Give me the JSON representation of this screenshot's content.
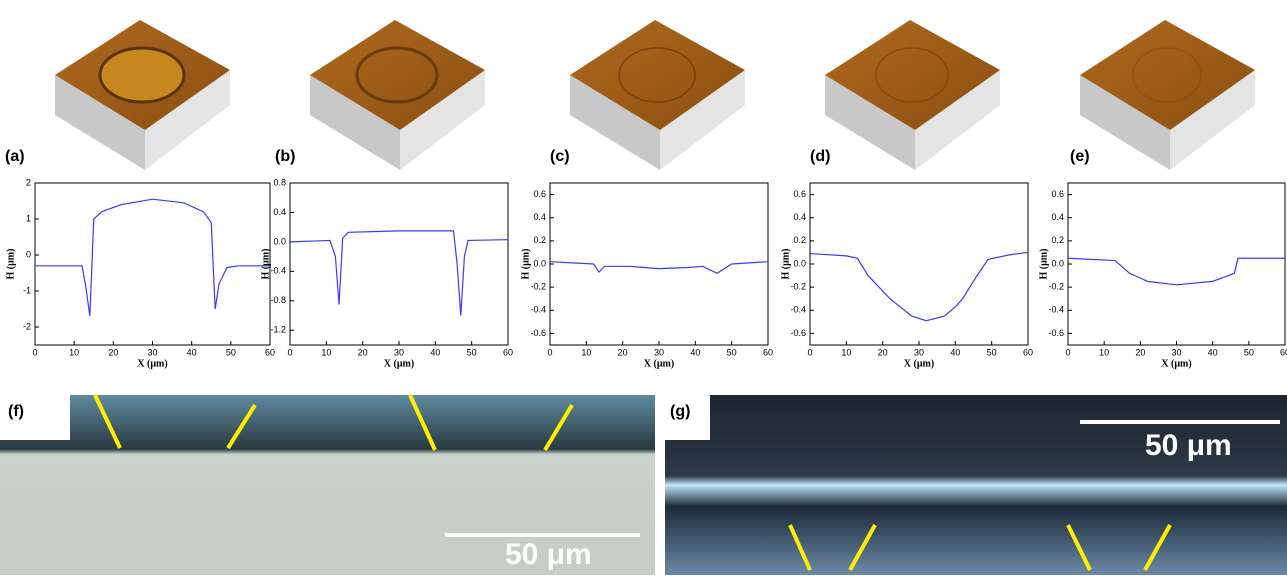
{
  "chart_data": [
    {
      "type": "line",
      "xlabel": "X (μm)",
      "ylabel": "H (μm)",
      "color": "#3a3aff",
      "x": [
        0,
        12,
        13,
        14,
        15,
        17,
        22,
        30,
        38,
        43,
        45,
        46,
        47,
        49,
        52,
        60
      ],
      "values": [
        -0.3,
        -0.3,
        -0.9,
        -1.7,
        1.0,
        1.2,
        1.4,
        1.55,
        1.45,
        1.2,
        0.9,
        -1.5,
        -0.8,
        -0.35,
        -0.3,
        -0.3
      ],
      "xlim": [
        0,
        60
      ],
      "xticks": [
        0,
        10,
        20,
        30,
        40,
        50,
        60
      ],
      "ylim": [
        -2.5,
        2.0
      ],
      "yticks": [
        -2,
        -1,
        0,
        1,
        2
      ]
    },
    {
      "type": "line",
      "xlabel": "X (μm)",
      "ylabel": "H (μm)",
      "color": "#3a3aff",
      "x": [
        0,
        11,
        12.5,
        13.5,
        14.5,
        16,
        30,
        45,
        46,
        47,
        48,
        49,
        60
      ],
      "values": [
        0.0,
        0.02,
        -0.2,
        -0.85,
        0.05,
        0.13,
        0.15,
        0.15,
        -0.3,
        -1.0,
        -0.2,
        0.02,
        0.03
      ],
      "xlim": [
        0,
        60
      ],
      "xticks": [
        0,
        10,
        20,
        30,
        40,
        50,
        60
      ],
      "ylim": [
        -1.4,
        0.8
      ],
      "yticks": [
        -1.2,
        -0.8,
        -0.4,
        {
          "value": 0,
          "label": "0.0"
        },
        0.4,
        0.8
      ]
    },
    {
      "type": "line",
      "xlabel": "X (μm)",
      "ylabel": "H (μm)",
      "color": "#3a3aff",
      "x": [
        0,
        12,
        13.5,
        15,
        22,
        30,
        38,
        42,
        46,
        50,
        60
      ],
      "values": [
        0.02,
        0.0,
        -0.07,
        -0.02,
        -0.02,
        -0.04,
        -0.03,
        -0.02,
        -0.08,
        0.0,
        0.02
      ],
      "xlim": [
        0,
        60
      ],
      "xticks": [
        0,
        10,
        20,
        30,
        40,
        50,
        60
      ],
      "ylim": [
        -0.7,
        0.7
      ],
      "yticks": [
        -0.6,
        -0.4,
        -0.2,
        {
          "value": 0,
          "label": "0.0"
        },
        0.2,
        0.4,
        0.6
      ]
    },
    {
      "type": "line",
      "xlabel": "X (μm)",
      "ylabel": "H (μm)",
      "color": "#3a3aff",
      "x": [
        0,
        10,
        13,
        16,
        22,
        28,
        32,
        37,
        40,
        42,
        46,
        49,
        55,
        60
      ],
      "values": [
        0.09,
        0.07,
        0.05,
        -0.1,
        -0.3,
        -0.45,
        -0.49,
        -0.45,
        -0.37,
        -0.3,
        -0.1,
        0.04,
        0.08,
        0.1
      ],
      "xlim": [
        0,
        60
      ],
      "xticks": [
        0,
        10,
        20,
        30,
        40,
        50,
        60
      ],
      "ylim": [
        -0.7,
        0.7
      ],
      "yticks": [
        -0.6,
        -0.4,
        -0.2,
        {
          "value": 0,
          "label": "0.0"
        },
        0.2,
        0.4,
        0.6
      ]
    },
    {
      "type": "line",
      "xlabel": "X (μm)",
      "ylabel": "H (μm)",
      "color": "#3a3aff",
      "x": [
        0,
        13,
        17,
        22,
        30,
        40,
        46,
        47,
        60
      ],
      "values": [
        0.05,
        0.03,
        -0.08,
        -0.15,
        -0.18,
        -0.15,
        -0.08,
        0.05,
        0.05
      ],
      "xlim": [
        0,
        60
      ],
      "xticks": [
        0,
        10,
        20,
        30,
        40,
        50,
        60
      ],
      "ylim": [
        -0.7,
        0.7
      ],
      "yticks": [
        -0.6,
        -0.4,
        -0.2,
        {
          "value": 0,
          "label": "0.0"
        },
        0.2,
        0.4,
        0.6
      ]
    }
  ],
  "panels": [
    "(a)",
    "(b)",
    "(c)",
    "(d)",
    "(e)",
    "(f)",
    "(g)"
  ],
  "scale_bars": [
    "50 μm",
    "50 μm"
  ]
}
